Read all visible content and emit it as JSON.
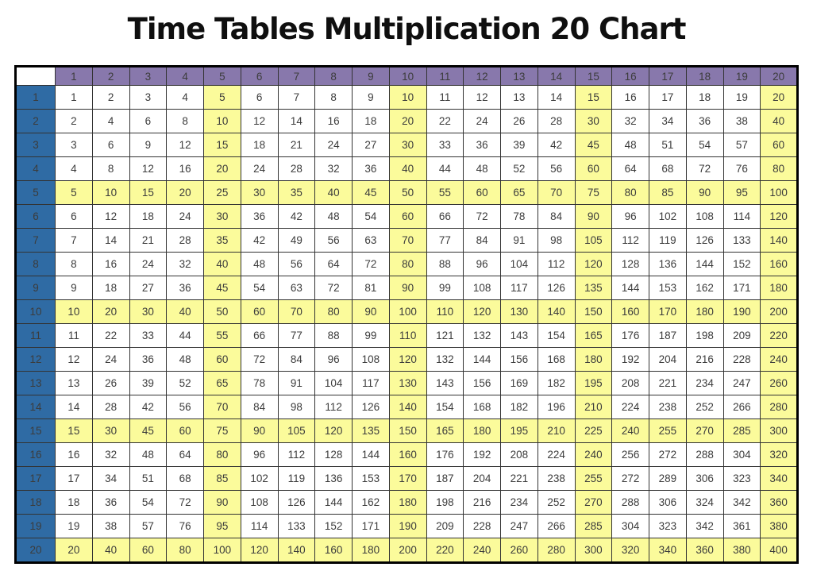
{
  "title": "Time Tables Multiplication 20 Chart",
  "colors": {
    "column_header_bg": "#8878AC",
    "column_header_text": "#ECE6F4",
    "row_header_bg": "#2F6BA4",
    "row_header_text": "#DCE9F5",
    "highlight_bg": "#FBFB9B",
    "cell_bg": "#FFFFFF",
    "cell_text": "#3C3C3C",
    "grid_border": "#333333",
    "header_border": "#0B0B0B",
    "outer_border": "#000000",
    "title_text": "#0F0F0F"
  },
  "chart_data": {
    "type": "table",
    "title": "Time Tables Multiplication 20 Chart",
    "column_headers": [
      1,
      2,
      3,
      4,
      5,
      6,
      7,
      8,
      9,
      10,
      11,
      12,
      13,
      14,
      15,
      16,
      17,
      18,
      19,
      20
    ],
    "row_headers": [
      1,
      2,
      3,
      4,
      5,
      6,
      7,
      8,
      9,
      10,
      11,
      12,
      13,
      14,
      15,
      16,
      17,
      18,
      19,
      20
    ],
    "highlight_multiples_of": 5,
    "rows": [
      [
        1,
        2,
        3,
        4,
        5,
        6,
        7,
        8,
        9,
        10,
        11,
        12,
        13,
        14,
        15,
        16,
        17,
        18,
        19,
        20
      ],
      [
        2,
        4,
        6,
        8,
        10,
        12,
        14,
        16,
        18,
        20,
        22,
        24,
        26,
        28,
        30,
        32,
        34,
        36,
        38,
        40
      ],
      [
        3,
        6,
        9,
        12,
        15,
        18,
        21,
        24,
        27,
        30,
        33,
        36,
        39,
        42,
        45,
        48,
        51,
        54,
        57,
        60
      ],
      [
        4,
        8,
        12,
        16,
        20,
        24,
        28,
        32,
        36,
        40,
        44,
        48,
        52,
        56,
        60,
        64,
        68,
        72,
        76,
        80
      ],
      [
        5,
        10,
        15,
        20,
        25,
        30,
        35,
        40,
        45,
        50,
        55,
        60,
        65,
        70,
        75,
        80,
        85,
        90,
        95,
        100
      ],
      [
        6,
        12,
        18,
        24,
        30,
        36,
        42,
        48,
        54,
        60,
        66,
        72,
        78,
        84,
        90,
        96,
        102,
        108,
        114,
        120
      ],
      [
        7,
        14,
        21,
        28,
        35,
        42,
        49,
        56,
        63,
        70,
        77,
        84,
        91,
        98,
        105,
        112,
        119,
        126,
        133,
        140
      ],
      [
        8,
        16,
        24,
        32,
        40,
        48,
        56,
        64,
        72,
        80,
        88,
        96,
        104,
        112,
        120,
        128,
        136,
        144,
        152,
        160
      ],
      [
        9,
        18,
        27,
        36,
        45,
        54,
        63,
        72,
        81,
        90,
        99,
        108,
        117,
        126,
        135,
        144,
        153,
        162,
        171,
        180
      ],
      [
        10,
        20,
        30,
        40,
        50,
        60,
        70,
        80,
        90,
        100,
        110,
        120,
        130,
        140,
        150,
        160,
        170,
        180,
        190,
        200
      ],
      [
        11,
        22,
        33,
        44,
        55,
        66,
        77,
        88,
        99,
        110,
        121,
        132,
        143,
        154,
        165,
        176,
        187,
        198,
        209,
        220
      ],
      [
        12,
        24,
        36,
        48,
        60,
        72,
        84,
        96,
        108,
        120,
        132,
        144,
        156,
        168,
        180,
        192,
        204,
        216,
        228,
        240
      ],
      [
        13,
        26,
        39,
        52,
        65,
        78,
        91,
        104,
        117,
        130,
        143,
        156,
        169,
        182,
        195,
        208,
        221,
        234,
        247,
        260
      ],
      [
        14,
        28,
        42,
        56,
        70,
        84,
        98,
        112,
        126,
        140,
        154,
        168,
        182,
        196,
        210,
        224,
        238,
        252,
        266,
        280
      ],
      [
        15,
        30,
        45,
        60,
        75,
        90,
        105,
        120,
        135,
        150,
        165,
        180,
        195,
        210,
        225,
        240,
        255,
        270,
        285,
        300
      ],
      [
        16,
        32,
        48,
        64,
        80,
        96,
        112,
        128,
        144,
        160,
        176,
        192,
        208,
        224,
        240,
        256,
        272,
        288,
        304,
        320
      ],
      [
        17,
        34,
        51,
        68,
        85,
        102,
        119,
        136,
        153,
        170,
        187,
        204,
        221,
        238,
        255,
        272,
        289,
        306,
        323,
        340
      ],
      [
        18,
        36,
        54,
        72,
        90,
        108,
        126,
        144,
        162,
        180,
        198,
        216,
        234,
        252,
        270,
        288,
        306,
        324,
        342,
        360
      ],
      [
        19,
        38,
        57,
        76,
        95,
        114,
        133,
        152,
        171,
        190,
        209,
        228,
        247,
        266,
        285,
        304,
        323,
        342,
        361,
        380
      ],
      [
        20,
        40,
        60,
        80,
        100,
        120,
        140,
        160,
        180,
        200,
        220,
        240,
        260,
        280,
        300,
        320,
        340,
        360,
        380,
        400
      ]
    ]
  }
}
